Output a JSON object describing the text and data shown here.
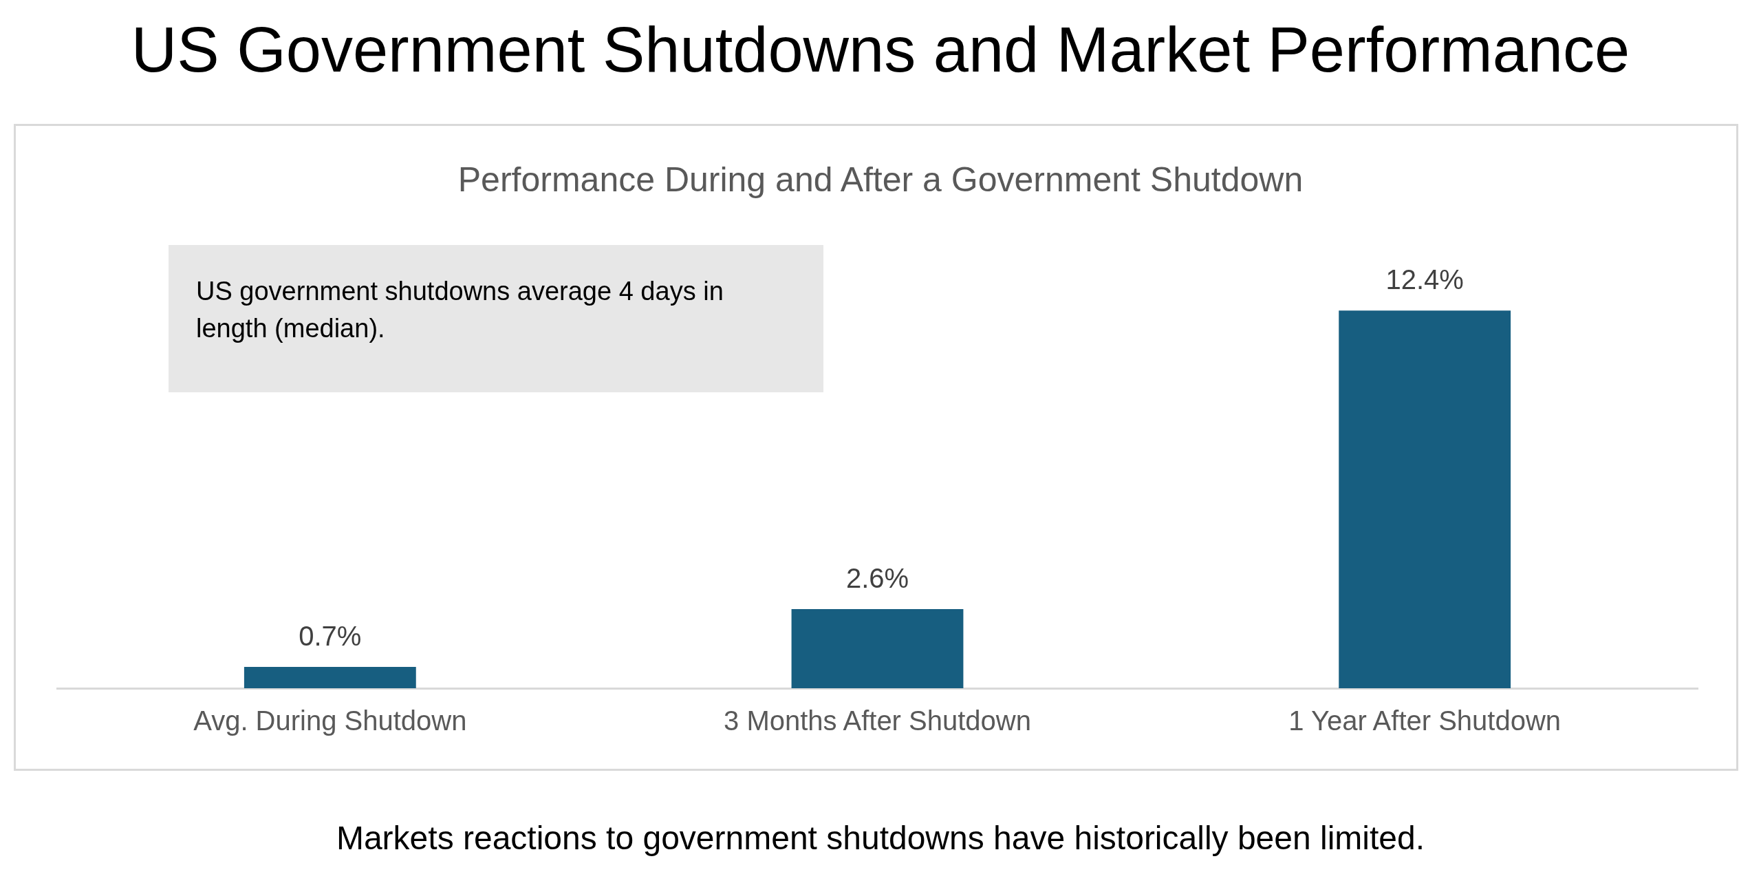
{
  "chart_data": {
    "type": "bar",
    "title": "US Government Shutdowns and Market Performance",
    "subtitle": "Performance During and After a Government Shutdown",
    "categories": [
      "Avg. During Shutdown",
      "3 Months After Shutdown",
      "1 Year After Shutdown"
    ],
    "values": [
      0.7,
      2.6,
      12.4
    ],
    "value_labels": [
      "0.7%",
      "2.6%",
      "12.4%"
    ],
    "color": "#175e80",
    "grid": false,
    "legend": false,
    "annotations": [
      "US government shutdowns average 4 days in length (median).",
      "Markets reactions to government shutdowns have historically been limited."
    ]
  }
}
